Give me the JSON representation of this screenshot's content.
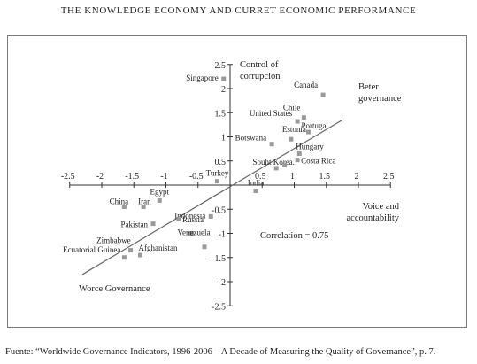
{
  "title": "THE KNOWLEDGE ECONOMY AND CURRET ECONOMIC PERFORMANCE",
  "source": "Fuente: “Worldwide Governance Indicators, 1996-2006 – A Decade of Measuring the Quality of Governance”, p. 7.",
  "chart_data": {
    "type": "scatter",
    "xlabel": "Voice and accountability",
    "ylabel": "Control of corrupcion",
    "xlim": [
      -2.5,
      2.5
    ],
    "ylim": [
      -2.5,
      2.5
    ],
    "x_ticks": [
      "-2.5",
      "-2",
      "-1.5",
      "-1",
      "-0.5",
      "0.5",
      "1",
      "1.5",
      "2",
      "2.5"
    ],
    "x_tick_values": [
      -2.5,
      -2,
      -1.5,
      -1,
      -0.5,
      0.5,
      1,
      1.5,
      2,
      2.5
    ],
    "y_ticks": [
      "2.5",
      "2",
      "1.5",
      "1",
      "0.5",
      "-0.5",
      "-1",
      "-1.5",
      "-2",
      "-2.5"
    ],
    "y_tick_values": [
      2.5,
      2,
      1.5,
      1,
      0.5,
      -0.5,
      -1,
      -1.5,
      -2,
      -2.5
    ],
    "annotations": {
      "better": "Beter governance",
      "worse": "Worce Governance",
      "correlation": "Correlation = 0.75"
    },
    "trend_line": {
      "x": [
        -2.3,
        1.75
      ],
      "y": [
        -1.85,
        1.35
      ]
    },
    "points": [
      {
        "label": "Singapore",
        "x": -0.1,
        "y": 2.2
      },
      {
        "label": "Canada",
        "x": 1.45,
        "y": 1.87
      },
      {
        "label": "Chile",
        "x": 1.15,
        "y": 1.4
      },
      {
        "label": "United States",
        "x": 1.05,
        "y": 1.32
      },
      {
        "label": "Portugal",
        "x": 1.22,
        "y": 1.1
      },
      {
        "label": "Botswana",
        "x": 0.65,
        "y": 0.85
      },
      {
        "label": "Estonia",
        "x": 0.95,
        "y": 0.95
      },
      {
        "label": "Hungary",
        "x": 1.08,
        "y": 0.65
      },
      {
        "label": "Souht Korea.",
        "x": 0.72,
        "y": 0.35
      },
      {
        "label": "Costa Rica",
        "x": 1.05,
        "y": 0.52
      },
      {
        "label": "",
        "x": 0.85,
        "y": 0.42
      },
      {
        "label": "Turkey",
        "x": -0.2,
        "y": 0.08
      },
      {
        "label": "India",
        "x": 0.4,
        "y": -0.12
      },
      {
        "label": "Egypt",
        "x": -1.1,
        "y": -0.32
      },
      {
        "label": "China",
        "x": -1.65,
        "y": -0.45
      },
      {
        "label": "Iran",
        "x": -1.35,
        "y": -0.45
      },
      {
        "label": "Indonesia",
        "x": -0.3,
        "y": -0.65
      },
      {
        "label": "Pakistan",
        "x": -1.2,
        "y": -0.8
      },
      {
        "label": "Russia",
        "x": -0.8,
        "y": -0.7
      },
      {
        "label": "Venezuela",
        "x": -0.6,
        "y": -1.0
      },
      {
        "label": "Zimbabwe",
        "x": -1.55,
        "y": -1.35
      },
      {
        "label": "Afghanistan",
        "x": -1.4,
        "y": -1.45
      },
      {
        "label": "Ecuatorial Guinea",
        "x": -1.65,
        "y": -1.5
      },
      {
        "label": "",
        "x": -0.4,
        "y": -1.28
      }
    ]
  }
}
